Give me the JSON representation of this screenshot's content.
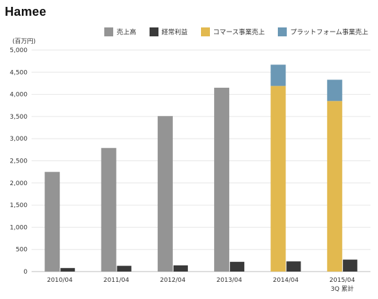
{
  "logo": "Hamee",
  "chart_data": {
    "type": "bar",
    "unit_label": "(百万円)",
    "categories": [
      "2010/04",
      "2011/04",
      "2012/04",
      "2013/04",
      "2014/04",
      "2015/04"
    ],
    "category_sublabels": [
      "",
      "",
      "",
      "",
      "",
      "3Q 累計"
    ],
    "series": [
      {
        "name": "売上高",
        "color": "#949494",
        "values": [
          2250,
          2790,
          3510,
          4150,
          null,
          null
        ]
      },
      {
        "name": "経常利益",
        "color": "#3a3a3a",
        "values": [
          80,
          130,
          140,
          220,
          230,
          270
        ]
      },
      {
        "name": "コマース事業売上",
        "color": "#e2b94f",
        "values": [
          null,
          null,
          null,
          null,
          4190,
          3850
        ]
      },
      {
        "name": "プラットフォーム事業売上",
        "color": "#6b98b5",
        "values": [
          null,
          null,
          null,
          null,
          480,
          480
        ]
      }
    ],
    "stacked_series": [
      "コマース事業売上",
      "プラットフォーム事業売上"
    ],
    "ylim": [
      0,
      5000
    ],
    "yticks": [
      0,
      500,
      1000,
      1500,
      2000,
      2500,
      3000,
      3500,
      4000,
      4500,
      5000
    ],
    "ytick_labels": [
      "0",
      "500",
      "1,000",
      "1,500",
      "2,000",
      "2,500",
      "3,000",
      "3,500",
      "4,000",
      "4,500",
      "5,000"
    ],
    "grid": true,
    "legend_position": "top-right"
  }
}
